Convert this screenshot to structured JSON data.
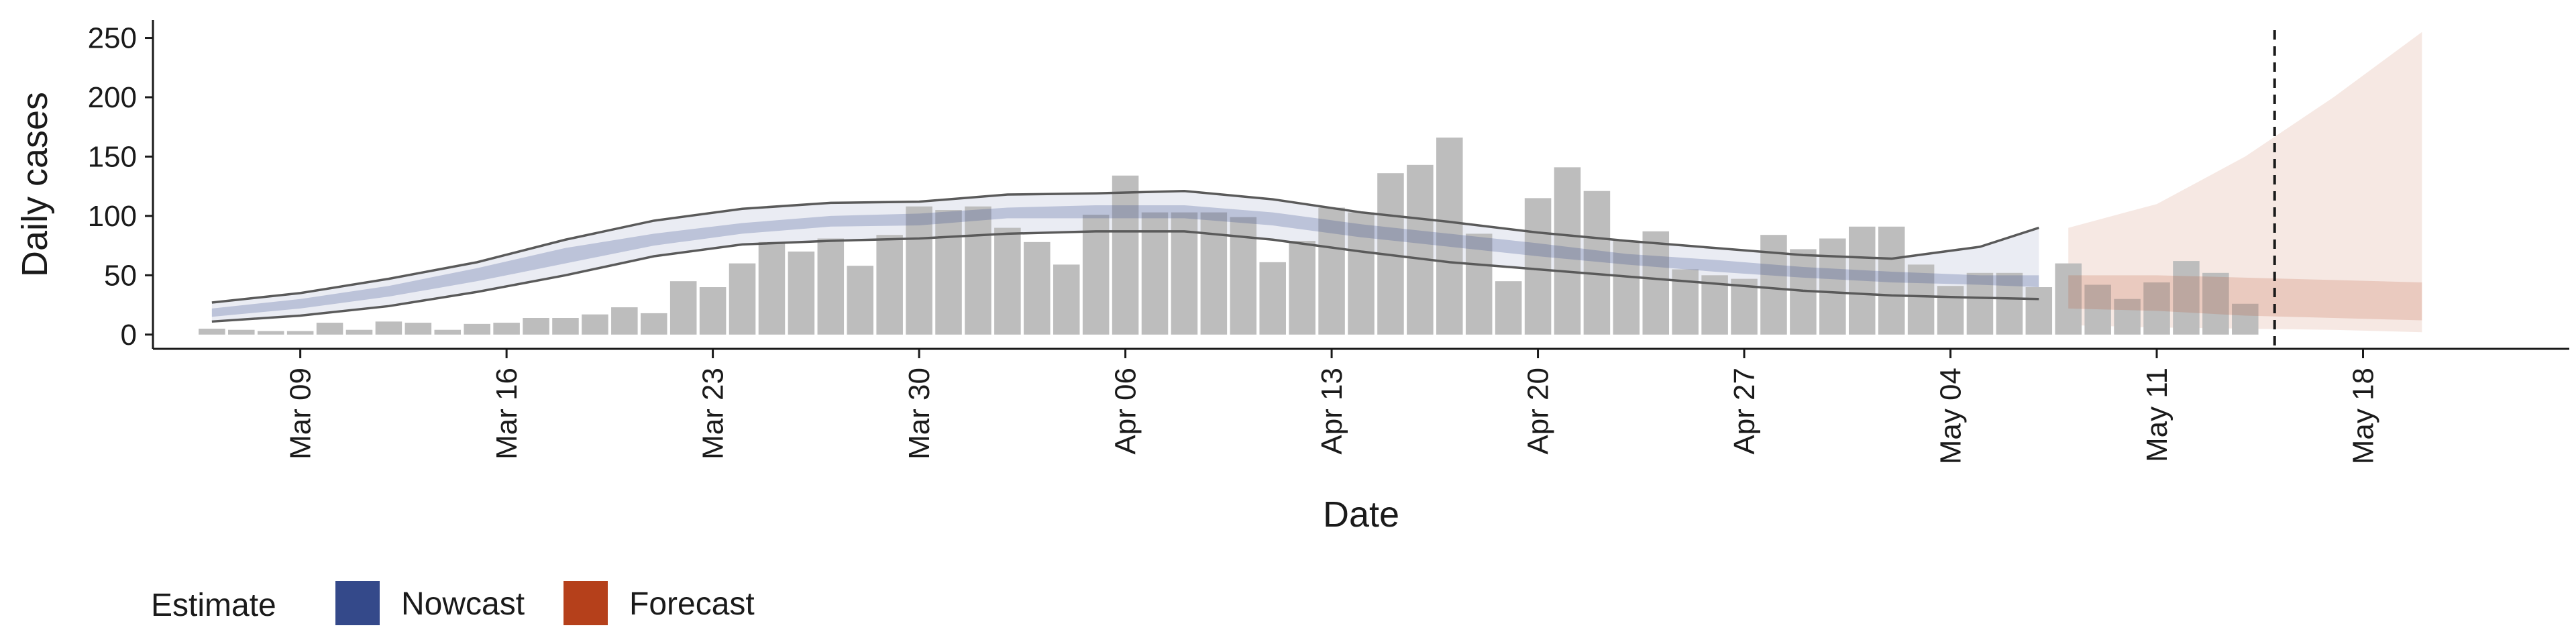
{
  "chart_data": {
    "type": "bar",
    "xlabel": "Date",
    "ylabel": "Daily cases",
    "ylim": [
      -12,
      265
    ],
    "xlim": [
      "2020-03-04",
      "2020-05-25"
    ],
    "x_ticks": [
      "2020-03-09",
      "2020-03-16",
      "2020-03-23",
      "2020-03-30",
      "2020-04-06",
      "2020-04-13",
      "2020-04-20",
      "2020-04-27",
      "2020-05-04",
      "2020-05-11",
      "2020-05-18"
    ],
    "x_tick_labels": [
      "Mar 09",
      "Mar 16",
      "Mar 23",
      "Mar 30",
      "Apr 06",
      "Apr 13",
      "Apr 20",
      "Apr 27",
      "May 04",
      "May 11",
      "May 18"
    ],
    "y_ticks": [
      0,
      50,
      100,
      150,
      200,
      250
    ],
    "y_tick_labels": [
      "0",
      "50",
      "100",
      "150",
      "200",
      "250"
    ],
    "grid": false,
    "legend_position": "bottom-left",
    "legend": {
      "title": "Estimate",
      "items": [
        {
          "label": "Nowcast",
          "color": "#34498a"
        },
        {
          "label": "Forecast",
          "color": "#b5401b"
        }
      ]
    },
    "reference_line": {
      "x": "2020-05-15",
      "style": "dashed"
    },
    "bars": {
      "color": "#bdbdbd",
      "dates": [
        "2020-03-06",
        "2020-03-07",
        "2020-03-08",
        "2020-03-09",
        "2020-03-10",
        "2020-03-11",
        "2020-03-12",
        "2020-03-13",
        "2020-03-14",
        "2020-03-15",
        "2020-03-16",
        "2020-03-17",
        "2020-03-18",
        "2020-03-19",
        "2020-03-20",
        "2020-03-21",
        "2020-03-22",
        "2020-03-23",
        "2020-03-24",
        "2020-03-25",
        "2020-03-26",
        "2020-03-27",
        "2020-03-28",
        "2020-03-29",
        "2020-03-30",
        "2020-03-31",
        "2020-04-01",
        "2020-04-02",
        "2020-04-03",
        "2020-04-04",
        "2020-04-05",
        "2020-04-06",
        "2020-04-07",
        "2020-04-08",
        "2020-04-09",
        "2020-04-10",
        "2020-04-11",
        "2020-04-12",
        "2020-04-13",
        "2020-04-14",
        "2020-04-15",
        "2020-04-16",
        "2020-04-17",
        "2020-04-18",
        "2020-04-19",
        "2020-04-20",
        "2020-04-21",
        "2020-04-22",
        "2020-04-23",
        "2020-04-24",
        "2020-04-25",
        "2020-04-26",
        "2020-04-27",
        "2020-04-28",
        "2020-04-29",
        "2020-04-30",
        "2020-05-01",
        "2020-05-02",
        "2020-05-03",
        "2020-05-04",
        "2020-05-05",
        "2020-05-06",
        "2020-05-07",
        "2020-05-08",
        "2020-05-09",
        "2020-05-10",
        "2020-05-11",
        "2020-05-12",
        "2020-05-13",
        "2020-05-14"
      ],
      "values": [
        5,
        4,
        3,
        3,
        10,
        4,
        11,
        10,
        4,
        9,
        10,
        14,
        14,
        17,
        23,
        18,
        45,
        40,
        60,
        78,
        70,
        81,
        58,
        84,
        108,
        105,
        108,
        90,
        78,
        59,
        101,
        134,
        103,
        103,
        103,
        99,
        61,
        79,
        107,
        103,
        136,
        143,
        166,
        85,
        45,
        115,
        141,
        121,
        79,
        87,
        55,
        50,
        47,
        84,
        72,
        81,
        91,
        91,
        59,
        41,
        52,
        52,
        40,
        60,
        42,
        30,
        44,
        62,
        52,
        26
      ]
    },
    "series": [
      {
        "name": "Nowcast",
        "color": "#34498a",
        "type": "band",
        "band": "inner",
        "x": [
          "2020-03-06",
          "2020-03-09",
          "2020-03-12",
          "2020-03-15",
          "2020-03-18",
          "2020-03-21",
          "2020-03-24",
          "2020-03-27",
          "2020-03-30",
          "2020-04-02",
          "2020-04-05",
          "2020-04-08",
          "2020-04-11",
          "2020-04-14",
          "2020-04-17",
          "2020-04-20",
          "2020-04-23",
          "2020-04-26",
          "2020-04-29",
          "2020-05-02",
          "2020-05-05",
          "2020-05-07"
        ],
        "lower": [
          15,
          22,
          32,
          45,
          60,
          75,
          85,
          91,
          92,
          98,
          98,
          98,
          92,
          82,
          74,
          66,
          59,
          53,
          48,
          44,
          42,
          40
        ],
        "upper": [
          22,
          30,
          41,
          56,
          73,
          85,
          94,
          100,
          102,
          107,
          109,
          109,
          103,
          93,
          85,
          77,
          68,
          63,
          57,
          53,
          50,
          50
        ]
      },
      {
        "name": "Nowcast",
        "color": "#34498a",
        "type": "band",
        "band": "outer",
        "x": [
          "2020-03-06",
          "2020-03-09",
          "2020-03-12",
          "2020-03-15",
          "2020-03-18",
          "2020-03-21",
          "2020-03-24",
          "2020-03-27",
          "2020-03-30",
          "2020-04-02",
          "2020-04-05",
          "2020-04-08",
          "2020-04-11",
          "2020-04-14",
          "2020-04-17",
          "2020-04-20",
          "2020-04-23",
          "2020-04-26",
          "2020-04-29",
          "2020-05-02",
          "2020-05-05",
          "2020-05-07"
        ],
        "lower": [
          11,
          16,
          24,
          36,
          50,
          66,
          76,
          79,
          81,
          85,
          87,
          87,
          80,
          70,
          61,
          55,
          49,
          43,
          37,
          33,
          31,
          30
        ],
        "upper": [
          27,
          35,
          47,
          61,
          80,
          96,
          106,
          111,
          112,
          118,
          119,
          121,
          114,
          103,
          95,
          86,
          79,
          73,
          67,
          64,
          74,
          90
        ]
      },
      {
        "name": "Forecast",
        "color": "#b5401b",
        "type": "band",
        "band": "inner",
        "x": [
          "2020-05-08",
          "2020-05-11",
          "2020-05-14",
          "2020-05-17",
          "2020-05-20"
        ],
        "lower": [
          22,
          20,
          16,
          14,
          12
        ],
        "upper": [
          50,
          50,
          48,
          46,
          44
        ]
      },
      {
        "name": "Forecast",
        "color": "#b5401b",
        "type": "band",
        "band": "outer",
        "x": [
          "2020-05-08",
          "2020-05-11",
          "2020-05-14",
          "2020-05-17",
          "2020-05-20"
        ],
        "lower": [
          8,
          6,
          5,
          4,
          2
        ],
        "upper": [
          90,
          110,
          150,
          200,
          255
        ]
      }
    ]
  }
}
